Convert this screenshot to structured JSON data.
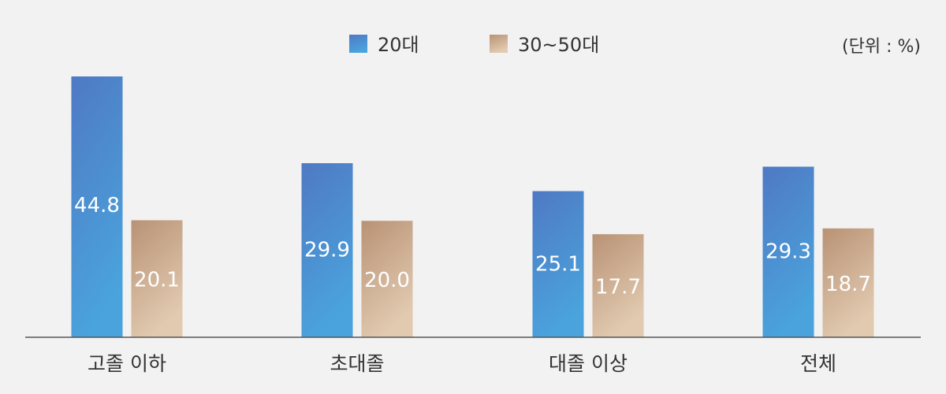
{
  "chart_data": {
    "type": "bar",
    "title": "",
    "xlabel": "",
    "ylabel": "",
    "unit_note": "(단위 : %)",
    "categories": [
      "고졸 이하",
      "초대졸",
      "대졸 이상",
      "전체"
    ],
    "series": [
      {
        "name": "20대",
        "values": [
          44.8,
          29.9,
          25.1,
          29.3
        ]
      },
      {
        "name": "30~50대",
        "values": [
          20.1,
          20.0,
          17.7,
          18.7
        ]
      }
    ],
    "ylim": [
      0,
      50
    ],
    "grid": false,
    "legend_position": "top-center"
  },
  "colors": {
    "series_20s_top": "#4f79c4",
    "series_20s_bottom": "#4aa3dc",
    "series_3050s_top": "#b99275",
    "series_3050s_bottom": "#e1cab0",
    "value_label": "#ffffff",
    "text": "#333333",
    "axis": "#555555",
    "background": "#f2f2f2"
  }
}
